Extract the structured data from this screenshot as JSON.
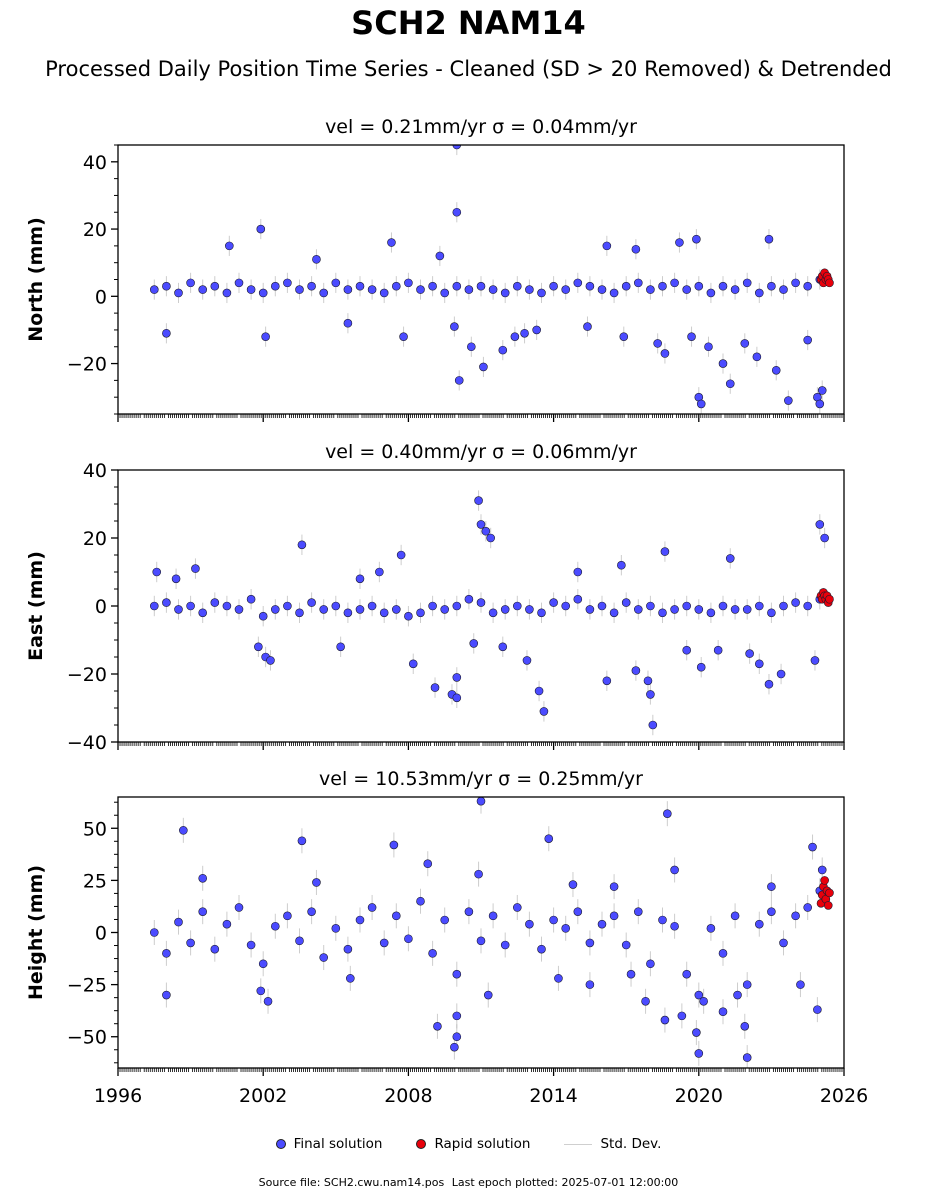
{
  "figure": {
    "title": "SCH2 NAM14",
    "subtitle": "Processed Daily Position Time Series - Cleaned (SD > 20 Removed) & Detrended",
    "footer_source": "Source file: SCH2.cwu.nam14.pos",
    "footer_last_epoch": "Last epoch plotted: 2025-07-01 12:00:00"
  },
  "legend": [
    {
      "label": "Final solution",
      "marker": "dot",
      "color": "#4b4bff"
    },
    {
      "label": "Rapid solution",
      "marker": "dot",
      "color": "#e8000b"
    },
    {
      "label": "Std. Dev.",
      "marker": "line",
      "color": "#cccccc"
    }
  ],
  "colors": {
    "final": "#4b4bff",
    "rapid": "#e8000b",
    "std_dev": "#b8b8b8",
    "marker_edge": "#1a1a2e"
  },
  "chart_data": [
    {
      "type": "scatter",
      "panel_title": "vel = 0.21mm/yr   σ = 0.04mm/yr",
      "ylabel": "North (mm)",
      "xlim": [
        1996,
        2026
      ],
      "ylim": [
        -35,
        45
      ],
      "yticks": [
        -20,
        0,
        20,
        40
      ],
      "ytick_labels": [
        "−20",
        "0",
        "20",
        "40"
      ],
      "xticks": [
        1996,
        2002,
        2008,
        2014,
        2020,
        2026
      ],
      "xtick_labels": [],
      "series": [
        {
          "name": "Final solution",
          "x": [
            1997.5,
            1998.0,
            1998.5,
            1999.0,
            1999.5,
            2000.0,
            2000.5,
            2001.0,
            2001.5,
            2002.0,
            2002.5,
            2003.0,
            2003.5,
            2004.0,
            2004.5,
            2005.0,
            2005.5,
            2006.0,
            2006.5,
            2007.0,
            2007.5,
            2008.0,
            2008.5,
            2009.0,
            2009.5,
            2010.0,
            2010.5,
            2011.0,
            2011.5,
            2012.0,
            2012.5,
            2013.0,
            2013.5,
            2014.0,
            2014.5,
            2015.0,
            2015.5,
            2016.0,
            2016.5,
            2017.0,
            2017.5,
            2018.0,
            2018.5,
            2019.0,
            2019.5,
            2020.0,
            2020.5,
            2021.0,
            2021.5,
            2022.0,
            2022.5,
            2023.0,
            2023.5,
            2024.0,
            2024.5,
            2025.0
          ],
          "y": [
            2,
            3,
            1,
            4,
            2,
            3,
            1,
            4,
            2,
            1,
            3,
            4,
            2,
            3,
            1,
            4,
            2,
            3,
            2,
            1,
            3,
            4,
            2,
            3,
            1,
            3,
            2,
            3,
            2,
            1,
            3,
            2,
            1,
            3,
            2,
            4,
            3,
            2,
            1,
            3,
            4,
            2,
            3,
            4,
            2,
            3,
            1,
            3,
            2,
            4,
            1,
            3,
            2,
            4,
            3,
            5
          ]
        },
        {
          "name": "Final solution (outliers)",
          "x": [
            1998.0,
            2000.6,
            2001.9,
            2002.1,
            2004.2,
            2005.5,
            2007.3,
            2007.8,
            2009.3,
            2009.9,
            2010.0,
            2010.0,
            2010.1,
            2010.6,
            2011.1,
            2011.9,
            2012.4,
            2012.8,
            2013.3,
            2015.4,
            2016.2,
            2016.9,
            2017.4,
            2018.3,
            2018.6,
            2019.2,
            2019.7,
            2019.9,
            2020.0,
            2020.1,
            2020.4,
            2021.0,
            2021.3,
            2021.9,
            2022.4,
            2022.9,
            2023.2,
            2023.7,
            2024.5,
            2024.9,
            2025.0,
            2025.1
          ],
          "y": [
            -11,
            15,
            20,
            -12,
            11,
            -8,
            16,
            -12,
            12,
            -9,
            45,
            25,
            -25,
            -15,
            -21,
            -16,
            -12,
            -11,
            -10,
            -9,
            15,
            -12,
            14,
            -14,
            -17,
            16,
            -12,
            17,
            -30,
            -32,
            -15,
            -20,
            -26,
            -14,
            -18,
            17,
            -22,
            -31,
            -13,
            -30,
            -32,
            -28
          ]
        },
        {
          "name": "Rapid solution",
          "x": [
            2025.05,
            2025.1,
            2025.15,
            2025.2,
            2025.25,
            2025.3,
            2025.35,
            2025.4
          ],
          "y": [
            5,
            6,
            4,
            7,
            5,
            6,
            5,
            4
          ]
        }
      ]
    },
    {
      "type": "scatter",
      "panel_title": "vel = 0.40mm/yr   σ = 0.06mm/yr",
      "ylabel": "East (mm)",
      "xlim": [
        1996,
        2026
      ],
      "ylim": [
        -40,
        40
      ],
      "yticks": [
        -40,
        -20,
        0,
        20,
        40
      ],
      "ytick_labels": [
        "−40",
        "−20",
        "0",
        "20",
        "40"
      ],
      "xticks": [
        1996,
        2002,
        2008,
        2014,
        2020,
        2026
      ],
      "xtick_labels": [],
      "series": [
        {
          "name": "Final solution",
          "x": [
            1997.5,
            1998.0,
            1998.5,
            1999.0,
            1999.5,
            2000.0,
            2000.5,
            2001.0,
            2001.5,
            2002.0,
            2002.5,
            2003.0,
            2003.5,
            2004.0,
            2004.5,
            2005.0,
            2005.5,
            2006.0,
            2006.5,
            2007.0,
            2007.5,
            2008.0,
            2008.5,
            2009.0,
            2009.5,
            2010.0,
            2010.5,
            2011.0,
            2011.5,
            2012.0,
            2012.5,
            2013.0,
            2013.5,
            2014.0,
            2014.5,
            2015.0,
            2015.5,
            2016.0,
            2016.5,
            2017.0,
            2017.5,
            2018.0,
            2018.5,
            2019.0,
            2019.5,
            2020.0,
            2020.5,
            2021.0,
            2021.5,
            2022.0,
            2022.5,
            2023.0,
            2023.5,
            2024.0,
            2024.5,
            2025.0
          ],
          "y": [
            0,
            1,
            -1,
            0,
            -2,
            1,
            0,
            -1,
            2,
            -3,
            -1,
            0,
            -2,
            1,
            -1,
            0,
            -2,
            -1,
            0,
            -2,
            -1,
            -3,
            -2,
            0,
            -1,
            0,
            2,
            1,
            -2,
            -1,
            0,
            -1,
            -2,
            1,
            0,
            2,
            -1,
            0,
            -2,
            1,
            -1,
            0,
            -2,
            -1,
            0,
            -1,
            -2,
            0,
            -1,
            -1,
            0,
            -2,
            0,
            1,
            0,
            2
          ]
        },
        {
          "name": "Final solution (outliers)",
          "x": [
            1997.6,
            1998.4,
            1999.2,
            2001.8,
            2002.1,
            2002.3,
            2003.6,
            2005.2,
            2006.0,
            2006.8,
            2007.7,
            2008.2,
            2009.1,
            2009.8,
            2010.0,
            2010.0,
            2010.7,
            2010.9,
            2011.0,
            2011.2,
            2011.4,
            2011.9,
            2012.9,
            2013.4,
            2013.6,
            2015.0,
            2016.2,
            2016.8,
            2017.4,
            2017.9,
            2018.0,
            2018.1,
            2018.6,
            2019.5,
            2020.1,
            2020.8,
            2021.3,
            2022.1,
            2022.5,
            2022.9,
            2023.4,
            2024.8,
            2025.0,
            2025.2
          ],
          "y": [
            10,
            8,
            11,
            -12,
            -15,
            -16,
            18,
            -12,
            8,
            10,
            15,
            -17,
            -24,
            -26,
            -21,
            -27,
            -11,
            31,
            24,
            22,
            20,
            -12,
            -16,
            -25,
            -31,
            10,
            -22,
            12,
            -19,
            -22,
            -26,
            -35,
            16,
            -13,
            -18,
            -13,
            14,
            -14,
            -17,
            -23,
            -20,
            -16,
            24,
            20
          ]
        },
        {
          "name": "Rapid solution",
          "x": [
            2025.05,
            2025.1,
            2025.15,
            2025.2,
            2025.25,
            2025.3,
            2025.35,
            2025.4
          ],
          "y": [
            3,
            2,
            4,
            3,
            2,
            3,
            1,
            2
          ]
        }
      ]
    },
    {
      "type": "scatter",
      "panel_title": "vel = 10.53mm/yr   σ = 0.25mm/yr",
      "ylabel": "Height (mm)",
      "xlim": [
        1996,
        2026
      ],
      "ylim": [
        -65,
        65
      ],
      "yticks": [
        -50,
        -25,
        0,
        25,
        50
      ],
      "ytick_labels": [
        "−50",
        "−25",
        "0",
        "25",
        "50"
      ],
      "xticks": [
        1996,
        2002,
        2008,
        2014,
        2020,
        2026
      ],
      "xtick_labels": [
        "1996",
        "2002",
        "2008",
        "2014",
        "2020",
        "2026"
      ],
      "series": [
        {
          "name": "Final solution",
          "x": [
            1997.5,
            1998.0,
            1998.5,
            1999.0,
            1999.5,
            2000.0,
            2000.5,
            2001.0,
            2001.5,
            2002.0,
            2002.5,
            2003.0,
            2003.5,
            2004.0,
            2004.5,
            2005.0,
            2005.5,
            2006.0,
            2006.5,
            2007.0,
            2007.5,
            2008.0,
            2008.5,
            2009.0,
            2009.5,
            2010.0,
            2010.5,
            2011.0,
            2011.5,
            2012.0,
            2012.5,
            2013.0,
            2013.5,
            2014.0,
            2014.5,
            2015.0,
            2015.5,
            2016.0,
            2016.5,
            2017.0,
            2017.5,
            2018.0,
            2018.5,
            2019.0,
            2019.5,
            2020.0,
            2020.5,
            2021.0,
            2021.5,
            2022.0,
            2022.5,
            2023.0,
            2023.5,
            2024.0,
            2024.5,
            2025.0
          ],
          "y": [
            0,
            -10,
            5,
            -5,
            10,
            -8,
            4,
            12,
            -6,
            -15,
            3,
            8,
            -4,
            10,
            -12,
            2,
            -8,
            6,
            12,
            -5,
            8,
            -3,
            15,
            -10,
            6,
            -20,
            10,
            -4,
            8,
            -6,
            12,
            4,
            -8,
            6,
            2,
            10,
            -5,
            4,
            8,
            -6,
            10,
            -15,
            6,
            3,
            -20,
            -30,
            2,
            -10,
            8,
            -25,
            4,
            10,
            -5,
            8,
            12,
            20
          ]
        },
        {
          "name": "Final solution (outliers)",
          "x": [
            1998.0,
            1998.7,
            1999.5,
            2001.9,
            2002.2,
            2003.6,
            2004.2,
            2005.6,
            2007.4,
            2008.8,
            2009.2,
            2009.9,
            2010.0,
            2010.0,
            2010.9,
            2011.0,
            2011.3,
            2013.8,
            2014.2,
            2014.8,
            2015.5,
            2016.5,
            2017.2,
            2017.8,
            2018.6,
            2018.7,
            2019.0,
            2019.3,
            2019.9,
            2020.0,
            2020.2,
            2021.0,
            2021.6,
            2021.9,
            2022.0,
            2023.0,
            2024.2,
            2024.9,
            2024.7,
            2025.1
          ],
          "y": [
            -30,
            49,
            26,
            -28,
            -33,
            44,
            24,
            -22,
            42,
            33,
            -45,
            -55,
            -40,
            -50,
            28,
            63,
            -30,
            45,
            -22,
            23,
            -25,
            22,
            -20,
            -33,
            -42,
            57,
            30,
            -40,
            -48,
            -58,
            -33,
            -38,
            -30,
            -45,
            -60,
            22,
            -25,
            -37,
            41,
            30
          ]
        },
        {
          "name": "Rapid solution",
          "x": [
            2025.05,
            2025.1,
            2025.15,
            2025.2,
            2025.25,
            2025.3,
            2025.35,
            2025.4
          ],
          "y": [
            14,
            18,
            22,
            25,
            16,
            20,
            13,
            19
          ]
        }
      ]
    }
  ]
}
